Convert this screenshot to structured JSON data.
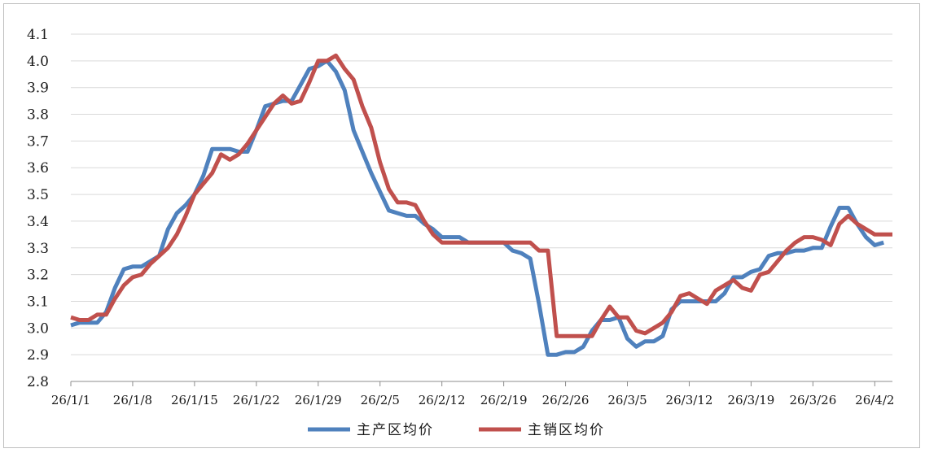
{
  "chart_data": {
    "type": "line",
    "title": "",
    "xlabel": "",
    "ylabel": "",
    "ylim": [
      2.8,
      4.1
    ],
    "yticks": [
      2.8,
      2.9,
      3.0,
      3.1,
      3.2,
      3.3,
      3.4,
      3.5,
      3.6,
      3.7,
      3.8,
      3.9,
      4.0,
      4.1
    ],
    "ytick_labels": [
      "2.8",
      "2.9",
      "3.0",
      "3.1",
      "3.2",
      "3.3",
      "3.4",
      "3.5",
      "3.6",
      "3.7",
      "3.8",
      "3.9",
      "4.0",
      "4.1"
    ],
    "grid": true,
    "legend_position": "bottom",
    "x_start": "26/1/1",
    "x_end": "26/4/2",
    "xticks": [
      {
        "label": "26/1/1",
        "day": 0
      },
      {
        "label": "26/1/8",
        "day": 7
      },
      {
        "label": "26/1/15",
        "day": 14
      },
      {
        "label": "26/1/22",
        "day": 21
      },
      {
        "label": "26/1/29",
        "day": 28
      },
      {
        "label": "26/2/5",
        "day": 35
      },
      {
        "label": "26/2/12",
        "day": 42
      },
      {
        "label": "26/2/19",
        "day": 49
      },
      {
        "label": "26/2/26",
        "day": 56
      },
      {
        "label": "26/3/5",
        "day": 63
      },
      {
        "label": "26/3/12",
        "day": 70
      },
      {
        "label": "26/3/19",
        "day": 77
      },
      {
        "label": "26/3/26",
        "day": 84
      },
      {
        "label": "26/4/2",
        "day": 91
      }
    ],
    "series": [
      {
        "name": "主产区均价",
        "color": "#4f81bd",
        "points": [
          [
            0,
            3.01
          ],
          [
            1,
            3.02
          ],
          [
            2,
            3.02
          ],
          [
            3,
            3.02
          ],
          [
            4,
            3.06
          ],
          [
            5,
            3.15
          ],
          [
            6,
            3.22
          ],
          [
            7,
            3.23
          ],
          [
            8,
            3.23
          ],
          [
            9,
            3.25
          ],
          [
            10,
            3.27
          ],
          [
            11,
            3.37
          ],
          [
            12,
            3.43
          ],
          [
            13,
            3.46
          ],
          [
            14,
            3.5
          ],
          [
            15,
            3.57
          ],
          [
            16,
            3.67
          ],
          [
            17,
            3.67
          ],
          [
            18,
            3.67
          ],
          [
            19,
            3.66
          ],
          [
            20,
            3.66
          ],
          [
            21,
            3.74
          ],
          [
            22,
            3.83
          ],
          [
            23,
            3.84
          ],
          [
            24,
            3.85
          ],
          [
            25,
            3.85
          ],
          [
            26,
            3.91
          ],
          [
            27,
            3.97
          ],
          [
            28,
            3.98
          ],
          [
            29,
            4.0
          ],
          [
            30,
            3.96
          ],
          [
            31,
            3.89
          ],
          [
            32,
            3.74
          ],
          [
            33,
            3.66
          ],
          [
            34,
            3.58
          ],
          [
            35,
            3.51
          ],
          [
            36,
            3.44
          ],
          [
            37,
            3.43
          ],
          [
            38,
            3.42
          ],
          [
            39,
            3.42
          ],
          [
            40,
            3.39
          ],
          [
            41,
            3.37
          ],
          [
            42,
            3.34
          ],
          [
            43,
            3.34
          ],
          [
            44,
            3.34
          ],
          [
            45,
            3.32
          ],
          [
            46,
            3.32
          ],
          [
            47,
            3.32
          ],
          [
            48,
            3.32
          ],
          [
            49,
            3.32
          ],
          [
            50,
            3.29
          ],
          [
            51,
            3.28
          ],
          [
            52,
            3.26
          ],
          [
            53,
            3.09
          ],
          [
            54,
            2.9
          ],
          [
            55,
            2.9
          ],
          [
            56,
            2.91
          ],
          [
            57,
            2.91
          ],
          [
            58,
            2.93
          ],
          [
            59,
            2.99
          ],
          [
            60,
            3.03
          ],
          [
            61,
            3.03
          ],
          [
            62,
            3.04
          ],
          [
            63,
            2.96
          ],
          [
            64,
            2.93
          ],
          [
            65,
            2.95
          ],
          [
            66,
            2.95
          ],
          [
            67,
            2.97
          ],
          [
            68,
            3.07
          ],
          [
            69,
            3.1
          ],
          [
            70,
            3.1
          ],
          [
            71,
            3.1
          ],
          [
            72,
            3.1
          ],
          [
            73,
            3.1
          ],
          [
            74,
            3.13
          ],
          [
            75,
            3.19
          ],
          [
            76,
            3.19
          ],
          [
            77,
            3.21
          ],
          [
            78,
            3.22
          ],
          [
            79,
            3.27
          ],
          [
            80,
            3.28
          ],
          [
            81,
            3.28
          ],
          [
            82,
            3.29
          ],
          [
            83,
            3.29
          ],
          [
            84,
            3.3
          ],
          [
            85,
            3.3
          ],
          [
            86,
            3.38
          ],
          [
            87,
            3.45
          ],
          [
            88,
            3.45
          ],
          [
            89,
            3.39
          ],
          [
            90,
            3.34
          ],
          [
            91,
            3.31
          ],
          [
            92,
            3.32
          ]
        ]
      },
      {
        "name": "主销区均价",
        "color": "#c0504d",
        "points": [
          [
            0,
            3.04
          ],
          [
            1,
            3.03
          ],
          [
            2,
            3.03
          ],
          [
            3,
            3.05
          ],
          [
            4,
            3.05
          ],
          [
            5,
            3.11
          ],
          [
            6,
            3.16
          ],
          [
            7,
            3.19
          ],
          [
            8,
            3.2
          ],
          [
            9,
            3.24
          ],
          [
            10,
            3.27
          ],
          [
            11,
            3.3
          ],
          [
            12,
            3.35
          ],
          [
            13,
            3.42
          ],
          [
            14,
            3.5
          ],
          [
            15,
            3.54
          ],
          [
            16,
            3.58
          ],
          [
            17,
            3.65
          ],
          [
            18,
            3.63
          ],
          [
            19,
            3.65
          ],
          [
            20,
            3.69
          ],
          [
            21,
            3.74
          ],
          [
            22,
            3.79
          ],
          [
            23,
            3.84
          ],
          [
            24,
            3.87
          ],
          [
            25,
            3.84
          ],
          [
            26,
            3.85
          ],
          [
            27,
            3.92
          ],
          [
            28,
            4.0
          ],
          [
            29,
            4.0
          ],
          [
            30,
            4.02
          ],
          [
            31,
            3.97
          ],
          [
            32,
            3.93
          ],
          [
            33,
            3.83
          ],
          [
            34,
            3.75
          ],
          [
            35,
            3.62
          ],
          [
            36,
            3.52
          ],
          [
            37,
            3.47
          ],
          [
            38,
            3.47
          ],
          [
            39,
            3.46
          ],
          [
            40,
            3.4
          ],
          [
            41,
            3.35
          ],
          [
            42,
            3.32
          ],
          [
            43,
            3.32
          ],
          [
            44,
            3.32
          ],
          [
            45,
            3.32
          ],
          [
            46,
            3.32
          ],
          [
            47,
            3.32
          ],
          [
            48,
            3.32
          ],
          [
            49,
            3.32
          ],
          [
            50,
            3.32
          ],
          [
            51,
            3.32
          ],
          [
            52,
            3.32
          ],
          [
            53,
            3.29
          ],
          [
            54,
            3.29
          ],
          [
            55,
            2.97
          ],
          [
            56,
            2.97
          ],
          [
            57,
            2.97
          ],
          [
            58,
            2.97
          ],
          [
            59,
            2.97
          ],
          [
            60,
            3.03
          ],
          [
            61,
            3.08
          ],
          [
            62,
            3.04
          ],
          [
            63,
            3.04
          ],
          [
            64,
            2.99
          ],
          [
            65,
            2.98
          ],
          [
            66,
            3.0
          ],
          [
            67,
            3.02
          ],
          [
            68,
            3.06
          ],
          [
            69,
            3.12
          ],
          [
            70,
            3.13
          ],
          [
            71,
            3.11
          ],
          [
            72,
            3.09
          ],
          [
            73,
            3.14
          ],
          [
            74,
            3.16
          ],
          [
            75,
            3.18
          ],
          [
            76,
            3.15
          ],
          [
            77,
            3.14
          ],
          [
            78,
            3.2
          ],
          [
            79,
            3.21
          ],
          [
            80,
            3.25
          ],
          [
            81,
            3.29
          ],
          [
            82,
            3.32
          ],
          [
            83,
            3.34
          ],
          [
            84,
            3.34
          ],
          [
            85,
            3.33
          ],
          [
            86,
            3.31
          ],
          [
            87,
            3.39
          ],
          [
            88,
            3.42
          ],
          [
            89,
            3.39
          ],
          [
            90,
            3.37
          ],
          [
            91,
            3.35
          ],
          [
            92,
            3.35
          ],
          [
            93,
            3.35
          ]
        ]
      }
    ]
  }
}
